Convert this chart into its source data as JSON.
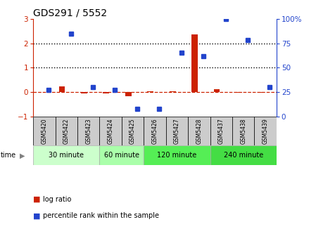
{
  "title": "GDS291 / 5552",
  "samples": [
    "GSM5420",
    "GSM5422",
    "GSM5423",
    "GSM5424",
    "GSM5425",
    "GSM5426",
    "GSM5427",
    "GSM5428",
    "GSM5437",
    "GSM5438",
    "GSM5439"
  ],
  "log_ratio": [
    0.0,
    0.22,
    -0.05,
    -0.05,
    -0.18,
    0.03,
    0.03,
    2.35,
    0.12,
    -0.04,
    -0.02
  ],
  "percentile_rank": [
    27,
    85,
    30,
    27,
    8,
    8,
    65,
    62,
    100,
    78,
    30
  ],
  "group_defs": [
    {
      "start": 0,
      "end": 2,
      "label": "30 minute",
      "color": "#ccffcc"
    },
    {
      "start": 3,
      "end": 4,
      "label": "60 minute",
      "color": "#aaffaa"
    },
    {
      "start": 5,
      "end": 7,
      "label": "120 minute",
      "color": "#55ee55"
    },
    {
      "start": 8,
      "end": 10,
      "label": "240 minute",
      "color": "#44dd44"
    }
  ],
  "ylim_left": [
    -1,
    3
  ],
  "ylim_right": [
    0,
    100
  ],
  "yticks_left": [
    -1,
    0,
    1,
    2,
    3
  ],
  "yticks_right": [
    0,
    25,
    50,
    75,
    100
  ],
  "bar_color_red": "#cc2200",
  "bar_color_blue": "#2244cc",
  "dashed_line_color": "#cc2200",
  "dotted_line_color": "#000000",
  "bg_color": "#ffffff",
  "label_bg": "#cccccc",
  "figsize": [
    4.49,
    3.36
  ],
  "dpi": 100
}
